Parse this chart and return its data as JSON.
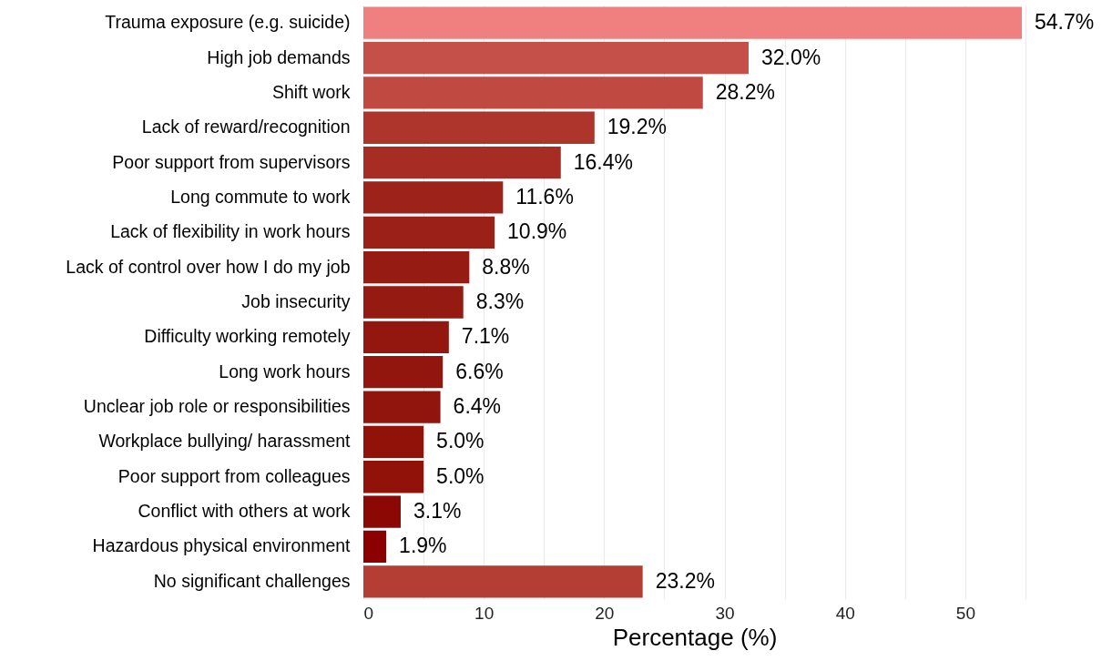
{
  "chart_data": {
    "type": "bar",
    "orientation": "horizontal",
    "xlabel": "Percentage (%)",
    "categories": [
      "Trauma exposure (e.g. suicide)",
      "High job demands",
      "Shift work",
      "Lack of reward/recognition",
      "Poor support from supervisors",
      "Long commute to work",
      "Lack of flexibility in work hours",
      "Lack of control over how I do my job",
      "Job insecurity",
      "Difficulty working remotely",
      "Long work hours",
      "Unclear job role or responsibilities",
      "Workplace bullying/ harassment",
      "Poor support from colleagues",
      "Conflict with others at work",
      "Hazardous physical environment",
      "No significant challenges"
    ],
    "values": [
      54.7,
      32.0,
      28.2,
      19.2,
      16.4,
      11.6,
      10.9,
      8.8,
      8.3,
      7.1,
      6.6,
      6.4,
      5.0,
      5.0,
      3.1,
      1.9,
      23.2
    ],
    "colors": [
      "#f08080",
      "#c5504a",
      "#c04a41",
      "#ad352b",
      "#a72d24",
      "#9c221a",
      "#9a2018",
      "#961b12",
      "#951a11",
      "#93170f",
      "#92150e",
      "#92150d",
      "#901209",
      "#901209",
      "#8c0804",
      "#8b0000",
      "#b43d34"
    ],
    "value_labels": [
      "54.7%",
      "32.0%",
      "28.2%",
      "19.2%",
      "16.4%",
      "11.6%",
      "10.9%",
      "8.8%",
      "8.3%",
      "7.1%",
      "6.6%",
      "6.4%",
      "5.0%",
      "5.0%",
      "3.1%",
      "1.9%",
      "23.2%"
    ],
    "xlim": [
      0,
      55
    ],
    "xticks": [
      0,
      {
        "value": 5,
        "label": null
      },
      10,
      {
        "value": 15,
        "label": null
      },
      20,
      {
        "value": 25,
        "label": null
      },
      30,
      {
        "value": 35,
        "label": null
      },
      40,
      {
        "value": 45,
        "label": null
      },
      50,
      {
        "value": 55,
        "label": null
      }
    ],
    "grid": "x"
  }
}
